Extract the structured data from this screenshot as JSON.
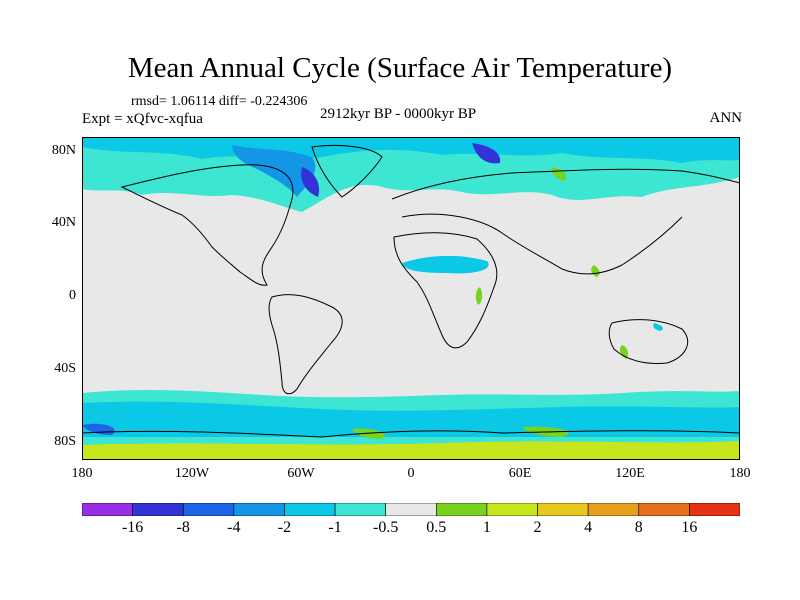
{
  "title": "Mean Annual Cycle (Surface Air Temperature)",
  "stats": "rmsd= 1.06114 diff= -0.224306",
  "experiment": "Expt = xQfvc-xqfua",
  "period": "2912kyr BP - 0000kyr BP",
  "season": "ANN",
  "lat_labels": [
    "80N",
    "40N",
    "0",
    "40S",
    "80S"
  ],
  "lon_labels": [
    "180",
    "120W",
    "60W",
    "0",
    "60E",
    "120E",
    "180"
  ],
  "colorbar": {
    "labels": [
      "-16",
      "-8",
      "-4",
      "-2",
      "-1",
      "-0.5",
      "0.5",
      "1",
      "2",
      "4",
      "8",
      "16"
    ],
    "colors": [
      "#9a2ee6",
      "#3232d6",
      "#1e64e6",
      "#1496e6",
      "#0ac8e6",
      "#3ce6d2",
      "#e8e8e8",
      "#78d21e",
      "#c8e61e",
      "#e6c81e",
      "#e6a01e",
      "#e66e1e",
      "#e63214"
    ]
  }
}
